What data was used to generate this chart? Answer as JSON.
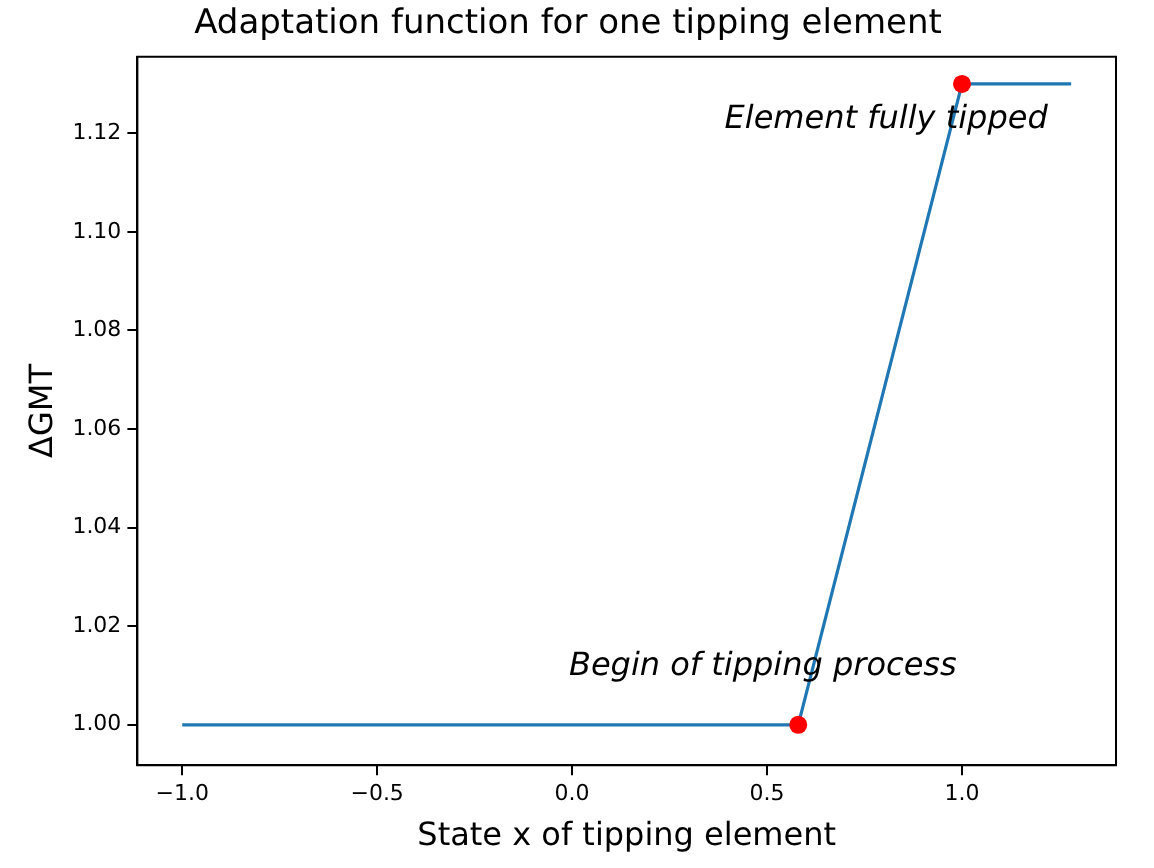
{
  "chart_data": {
    "type": "line",
    "title": "Adaptation function for one tipping element",
    "xlabel": "State x of tipping element",
    "ylabel": "ΔGMT",
    "series": [
      {
        "type": "line",
        "color": "#1f77b4",
        "x": [
          -1,
          0.58,
          1,
          1.28
        ],
        "values": [
          1,
          1,
          1.13,
          1.13
        ],
        "marker": "none"
      },
      {
        "type": "scatter",
        "color": "#ff0000",
        "x": [
          0.58,
          1
        ],
        "values": [
          1,
          1.13
        ],
        "marker": "circle"
      }
    ],
    "annotations": [
      "Begin of tipping process",
      "Element fully tipped"
    ],
    "xlim": [
      -1.115,
      1.395
    ],
    "ylim": [
      0.9918,
      1.1355
    ],
    "xticks": [
      {
        "value": -1,
        "label": "−1.0"
      },
      {
        "value": -0.5,
        "label": "−0.5"
      },
      {
        "value": 0,
        "label": "0.0"
      },
      {
        "value": 0.5,
        "label": "0.5"
      },
      {
        "value": 1,
        "label": "1.0"
      }
    ],
    "yticks": [
      {
        "value": 1,
        "label": "1.00"
      },
      {
        "value": 1.02,
        "label": "1.02"
      },
      {
        "value": 1.04,
        "label": "1.04"
      },
      {
        "value": 1.06,
        "label": "1.06"
      },
      {
        "value": 1.08,
        "label": "1.08"
      },
      {
        "value": 1.1,
        "label": "1.10"
      },
      {
        "value": 1.12,
        "label": "1.12"
      }
    ],
    "grid": false,
    "legend": false
  }
}
